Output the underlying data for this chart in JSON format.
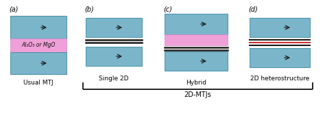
{
  "bg_color": "#ffffff",
  "blue_color": "#7ab5ca",
  "blue_border": "#4a90a8",
  "pink_color": "#f0a0d8",
  "red_color": "#d03030",
  "black_color": "#1a1a1a",
  "figsize": [
    4.74,
    1.66
  ],
  "dpi": 100,
  "al2o3_label": "Al₂O₃ or MgO",
  "bracket_label": "2D-MTJs",
  "labels": [
    "(a)",
    "(b)",
    "(c)",
    "(d)"
  ],
  "captions": [
    "Usual MTJ",
    "Single 2D",
    "Hybrid",
    "2D heterostructure"
  ]
}
